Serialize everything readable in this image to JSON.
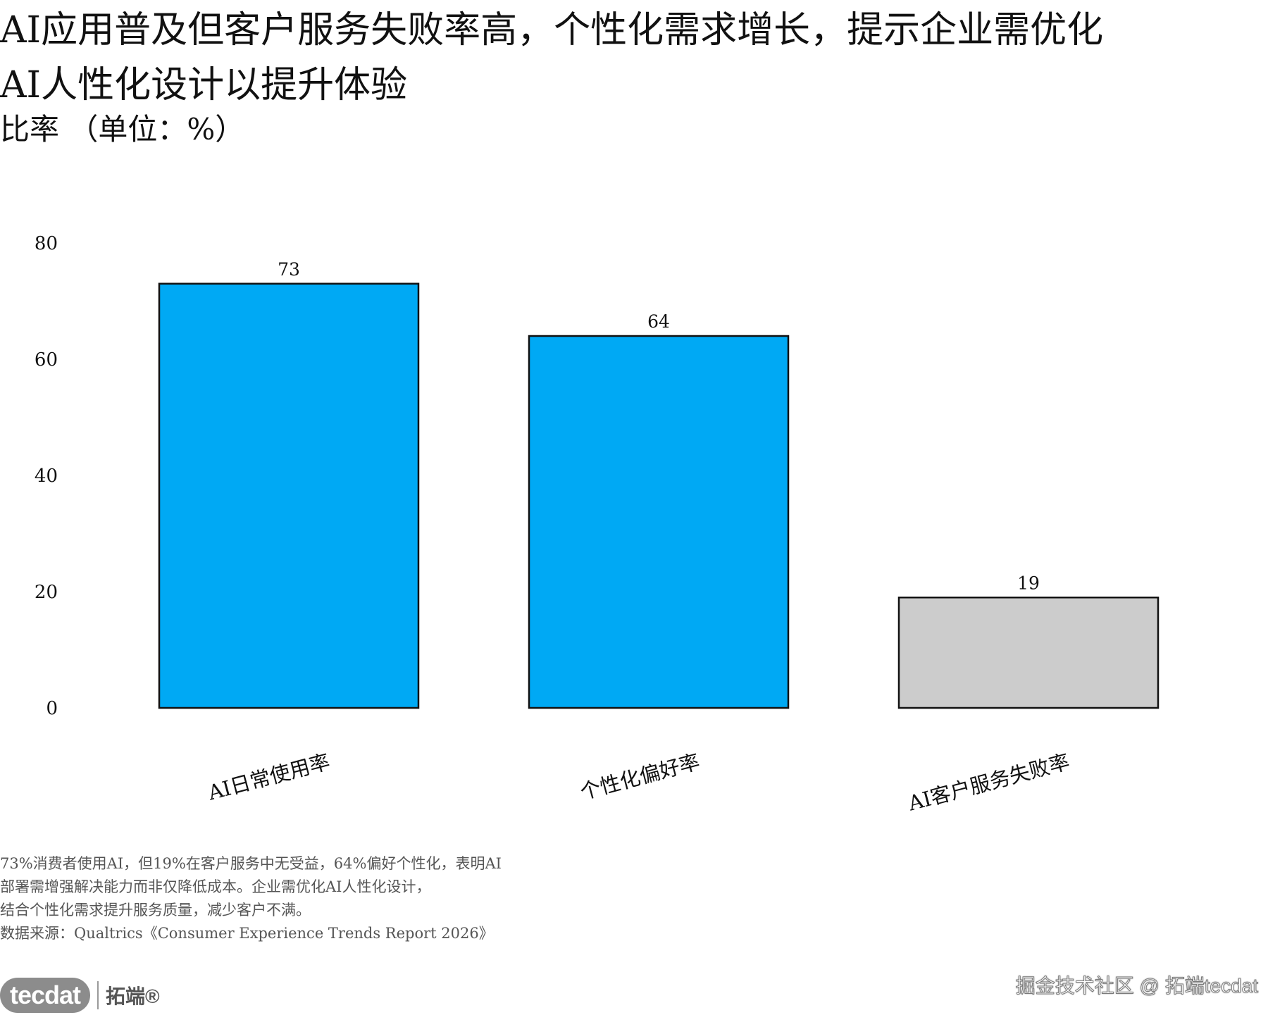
{
  "header": {
    "title": "AI应用普及但客户服务失败率高，个性化需求增长，提示企业需优化\nAI人性化设计以提升体验",
    "subtitle": "比率 （单位：%）"
  },
  "chart_data": {
    "type": "bar",
    "categories": [
      "AI日常使用率",
      "个性化偏好率",
      "AI客户服务失败率"
    ],
    "values": [
      73,
      64,
      19
    ],
    "bar_colors": [
      "#00a9f4",
      "#00a9f4",
      "#cccccc"
    ],
    "y_ticks": [
      0,
      20,
      40,
      60,
      80
    ],
    "ylim": [
      0,
      80
    ],
    "grid": false,
    "legend": "none"
  },
  "notes": {
    "lines": [
      "73%消费者使用AI，但19%在客户服务中无受益，64%偏好个性化，表明AI",
      "部署需增强解决能力而非仅降低成本。企业需优化AI人性化设计，",
      "结合个性化需求提升服务质量，减少客户不满。",
      "数据来源：Qualtrics《Consumer Experience Trends Report 2026》"
    ]
  },
  "branding": {
    "logo_mark": "tecdat",
    "logo_text": "拓端®",
    "watermark": "掘金技术社区 @ 拓端tecdat"
  }
}
